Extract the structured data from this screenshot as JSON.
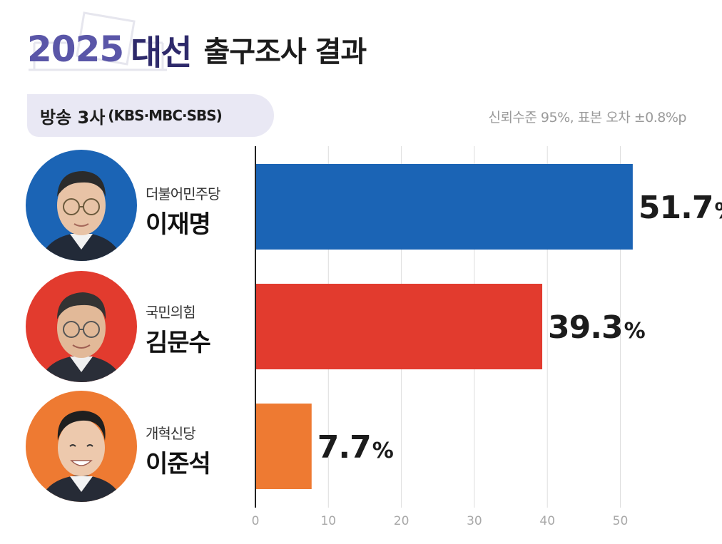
{
  "header": {
    "year": "2025",
    "title_bold": "대선",
    "title_rest": "출구조사 결과"
  },
  "source": {
    "label": "방송 3사",
    "stations": "(KBS·MBC·SBS)"
  },
  "note": "신뢰수준 95%, 표본 오차 ±0.8%p",
  "candidates": [
    {
      "party": "더불어민주당",
      "name": "이재명",
      "color": "#1b64b5"
    },
    {
      "party": "국민의힘",
      "name": "김문수",
      "color": "#e23b2e"
    },
    {
      "party": "개혁신당",
      "name": "이준석",
      "color": "#ee7a32"
    }
  ],
  "chart_data": {
    "type": "bar",
    "orientation": "horizontal",
    "categories": [
      "이재명",
      "김문수",
      "이준석"
    ],
    "values": [
      51.7,
      39.3,
      7.7
    ],
    "value_labels": [
      "51.7",
      "39.3",
      "7.7"
    ],
    "unit": "%",
    "colors": [
      "#1b64b5",
      "#e23b2e",
      "#ee7a32"
    ],
    "xlim": [
      0,
      52
    ],
    "ticks": [
      0,
      10,
      20,
      30,
      40,
      50
    ],
    "grid": true
  }
}
